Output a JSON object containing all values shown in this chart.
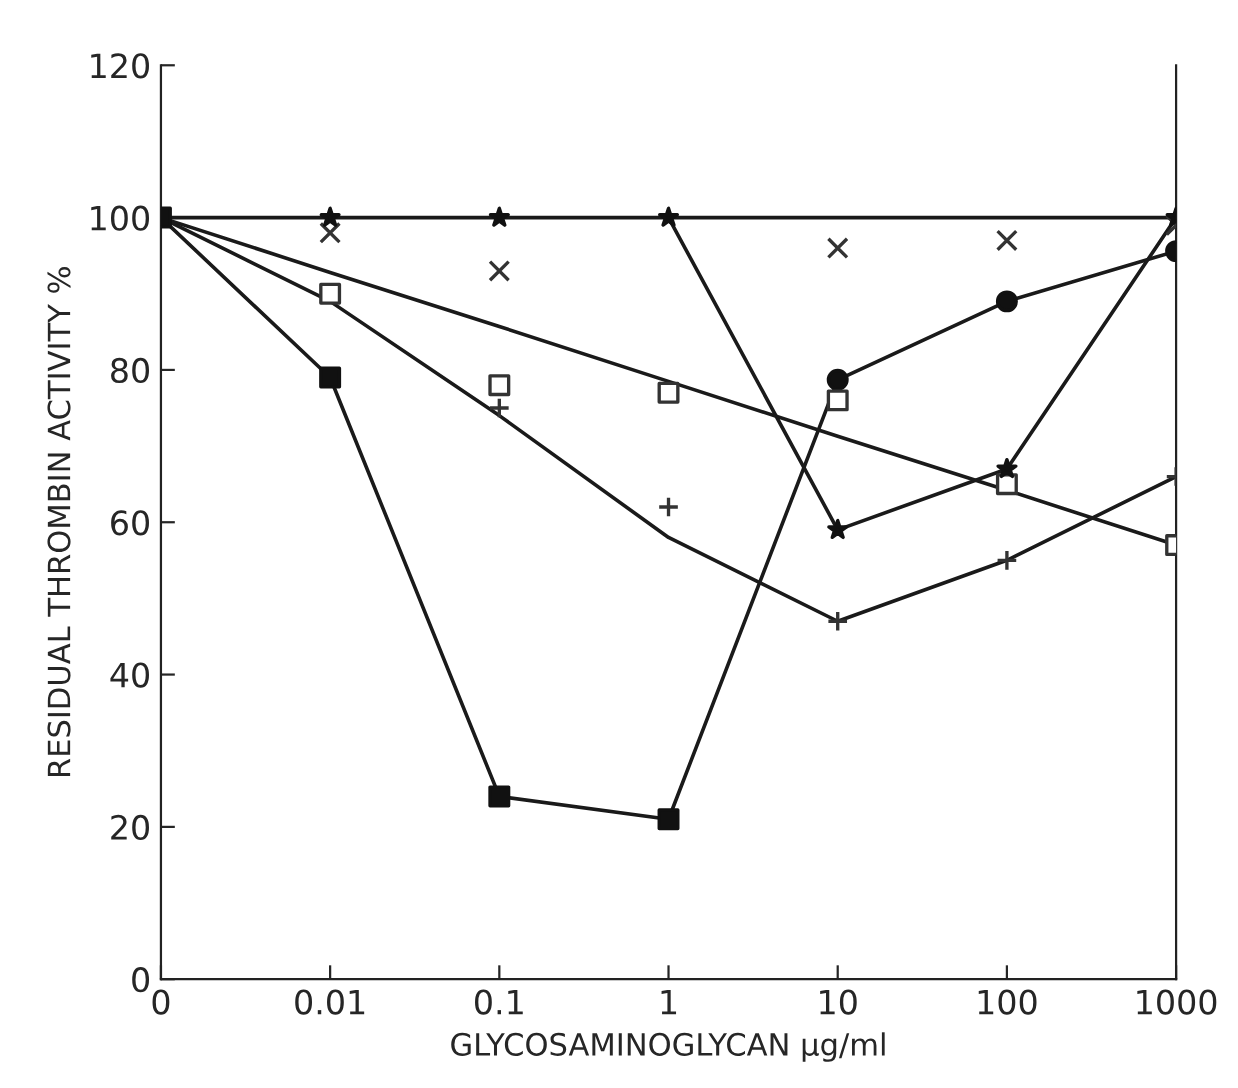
{
  "chart_data": {
    "type": "line",
    "xlabel": "GLYCOSAMINOGLYCAN µg/ml",
    "ylabel": "RESIDUAL THROMBIN ACTIVITY %",
    "categories": [
      "0",
      "0.01",
      "0.1",
      "1",
      "10",
      "100",
      "1000"
    ],
    "ylim": [
      0,
      120
    ],
    "yticks": [
      0,
      20,
      40,
      60,
      80,
      100,
      120
    ],
    "grid": false,
    "legend": false,
    "series": [
      {
        "marker": "none",
        "color": "#1a1a1a",
        "values": [
          100,
          79,
          24,
          21,
          78.7,
          89,
          95.6
        ]
      },
      {
        "marker": "none",
        "color": "#1a1a1a",
        "values": [
          100,
          100,
          100,
          100,
          100,
          100,
          100
        ]
      },
      {
        "marker": "none",
        "color": "#1a1a1a",
        "values": [
          null,
          null,
          null,
          100,
          59,
          67,
          100
        ]
      },
      {
        "marker": "none",
        "color": "#1a1a1a",
        "values": [
          100,
          92.8,
          85.7,
          78.5,
          71.3,
          64.2,
          57
        ]
      },
      {
        "marker": "none",
        "color": "#1a1a1a",
        "values": [
          100,
          89,
          74,
          58,
          47,
          55,
          66
        ]
      },
      {
        "type": "scatter",
        "marker": "square",
        "color": "#111111",
        "values": [
          100,
          79,
          24,
          21,
          null,
          null,
          null
        ]
      },
      {
        "type": "scatter",
        "marker": "circle",
        "color": "#111111",
        "values": [
          null,
          null,
          null,
          null,
          78.7,
          89,
          95.6
        ]
      },
      {
        "type": "scatter",
        "marker": "square-open",
        "color": "#333333",
        "values": [
          null,
          90,
          78,
          77,
          76,
          65,
          57
        ]
      },
      {
        "type": "scatter",
        "marker": "x",
        "color": "#333333",
        "values": [
          null,
          98,
          93,
          null,
          96,
          97,
          99
        ]
      },
      {
        "type": "scatter",
        "marker": "cross",
        "color": "#333333",
        "values": [
          null,
          null,
          75,
          62,
          47,
          55,
          66
        ]
      },
      {
        "type": "scatter",
        "marker": "star",
        "color": "#111111",
        "values": [
          null,
          100,
          100,
          100,
          59,
          67,
          100
        ]
      }
    ]
  }
}
